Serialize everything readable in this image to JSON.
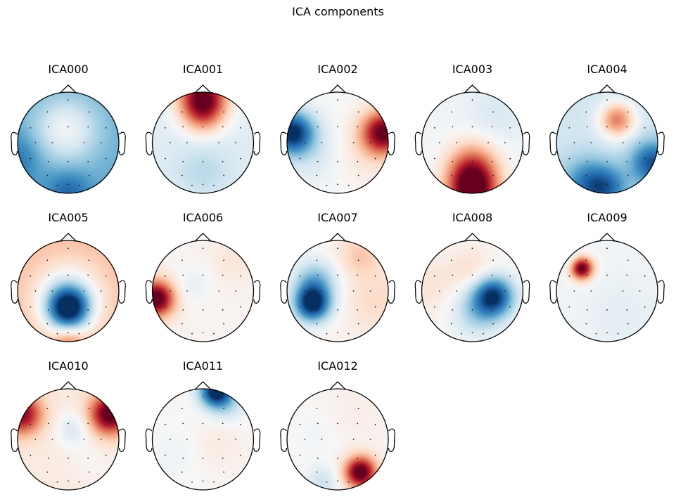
{
  "chart_data": {
    "type": "topomap-grid",
    "title": "ICA components",
    "colormap": [
      "#053061",
      "#2166ac",
      "#4393c3",
      "#92c5de",
      "#d1e5f0",
      "#f7f7f7",
      "#fddbc7",
      "#f4a582",
      "#d6604d",
      "#b2182b",
      "#67001f"
    ],
    "channels": [
      [
        0.0,
        -0.86
      ],
      [
        -0.42,
        -0.62
      ],
      [
        0.42,
        -0.62
      ],
      [
        -0.76,
        -0.3
      ],
      [
        -0.4,
        -0.32
      ],
      [
        0.0,
        -0.32
      ],
      [
        0.4,
        -0.32
      ],
      [
        0.76,
        -0.3
      ],
      [
        -0.66,
        0.0
      ],
      [
        -0.32,
        0.0
      ],
      [
        0.32,
        0.0
      ],
      [
        0.66,
        0.0
      ],
      [
        -0.76,
        0.32
      ],
      [
        -0.4,
        0.38
      ],
      [
        0.0,
        0.38
      ],
      [
        0.4,
        0.38
      ],
      [
        0.76,
        0.32
      ],
      [
        -0.42,
        0.66
      ],
      [
        0.42,
        0.66
      ],
      [
        0.0,
        0.84
      ],
      [
        -0.22,
        0.86
      ],
      [
        0.22,
        0.86
      ]
    ],
    "components": [
      {
        "name": "ICA000",
        "base": -0.65,
        "blobs": [
          [
            -0.05,
            -0.25,
            0.6,
            0.45
          ],
          [
            0.0,
            1.0,
            -0.4,
            0.3
          ],
          [
            -1.0,
            0.3,
            -0.3,
            0.35
          ]
        ]
      },
      {
        "name": "ICA001",
        "base": -0.15,
        "blobs": [
          [
            0.0,
            -0.95,
            1.3,
            0.35
          ],
          [
            0.0,
            -0.55,
            0.55,
            0.3
          ],
          [
            0.0,
            0.55,
            -0.2,
            0.4
          ]
        ]
      },
      {
        "name": "ICA002",
        "base": 0.0,
        "blobs": [
          [
            -0.9,
            -0.2,
            -1.3,
            0.3
          ],
          [
            0.9,
            -0.2,
            1.3,
            0.3
          ],
          [
            -0.5,
            0.2,
            -0.2,
            0.45
          ],
          [
            0.5,
            0.2,
            0.15,
            0.45
          ]
        ]
      },
      {
        "name": "ICA003",
        "base": -0.05,
        "blobs": [
          [
            0.0,
            0.95,
            1.4,
            0.35
          ],
          [
            0.0,
            0.45,
            0.7,
            0.35
          ],
          [
            0.5,
            -0.6,
            -0.15,
            0.4
          ]
        ]
      },
      {
        "name": "ICA004",
        "base": -0.25,
        "blobs": [
          [
            0.2,
            -0.45,
            0.9,
            0.25
          ],
          [
            0.9,
            0.4,
            -0.9,
            0.3
          ],
          [
            -0.4,
            0.8,
            -0.6,
            0.35
          ],
          [
            0.0,
            0.9,
            -0.6,
            0.3
          ]
        ]
      },
      {
        "name": "ICA005",
        "base": 0.4,
        "blobs": [
          [
            0.0,
            0.35,
            -1.5,
            0.3
          ],
          [
            0.0,
            0.1,
            -0.6,
            0.45
          ],
          [
            0.0,
            1.0,
            0.4,
            0.2
          ]
        ]
      },
      {
        "name": "ICA006",
        "base": 0.04,
        "blobs": [
          [
            -0.92,
            0.15,
            1.4,
            0.25
          ],
          [
            -0.2,
            -0.1,
            -0.15,
            0.25
          ],
          [
            0.6,
            -0.6,
            0.12,
            0.3
          ]
        ]
      },
      {
        "name": "ICA007",
        "base": 0.05,
        "blobs": [
          [
            -0.5,
            0.25,
            -1.4,
            0.25
          ],
          [
            -0.45,
            -0.2,
            -0.6,
            0.3
          ],
          [
            0.45,
            -0.7,
            0.3,
            0.3
          ],
          [
            0.8,
            0.2,
            0.2,
            0.4
          ]
        ]
      },
      {
        "name": "ICA008",
        "base": 0.02,
        "blobs": [
          [
            0.42,
            0.1,
            -1.2,
            0.28
          ],
          [
            0.1,
            0.4,
            -0.45,
            0.35
          ],
          [
            0.0,
            -0.4,
            0.2,
            0.3
          ],
          [
            -0.8,
            -0.1,
            0.15,
            0.4
          ]
        ]
      },
      {
        "name": "ICA009",
        "base": -0.05,
        "blobs": [
          [
            -0.5,
            -0.45,
            1.4,
            0.16
          ],
          [
            -0.8,
            -0.7,
            -0.2,
            0.2
          ],
          [
            0.3,
            0.5,
            -0.08,
            0.5
          ]
        ]
      },
      {
        "name": "ICA010",
        "base": 0.12,
        "blobs": [
          [
            -0.92,
            -0.5,
            1.1,
            0.28
          ],
          [
            0.82,
            -0.5,
            1.3,
            0.28
          ],
          [
            0.1,
            -0.2,
            -0.3,
            0.25
          ],
          [
            0.5,
            0.5,
            -0.1,
            0.3
          ]
        ]
      },
      {
        "name": "ICA011",
        "base": 0.02,
        "blobs": [
          [
            0.25,
            -0.95,
            -1.4,
            0.22
          ],
          [
            0.5,
            -0.7,
            -0.3,
            0.25
          ],
          [
            -0.6,
            0.3,
            -0.08,
            0.4
          ],
          [
            0.3,
            0.1,
            0.1,
            0.35
          ]
        ]
      },
      {
        "name": "ICA012",
        "base": 0.03,
        "blobs": [
          [
            0.45,
            0.65,
            1.4,
            0.22
          ],
          [
            -0.3,
            0.85,
            -0.3,
            0.22
          ],
          [
            -0.45,
            -0.1,
            -0.08,
            0.35
          ],
          [
            0.3,
            -0.5,
            0.06,
            0.4
          ]
        ]
      }
    ]
  }
}
